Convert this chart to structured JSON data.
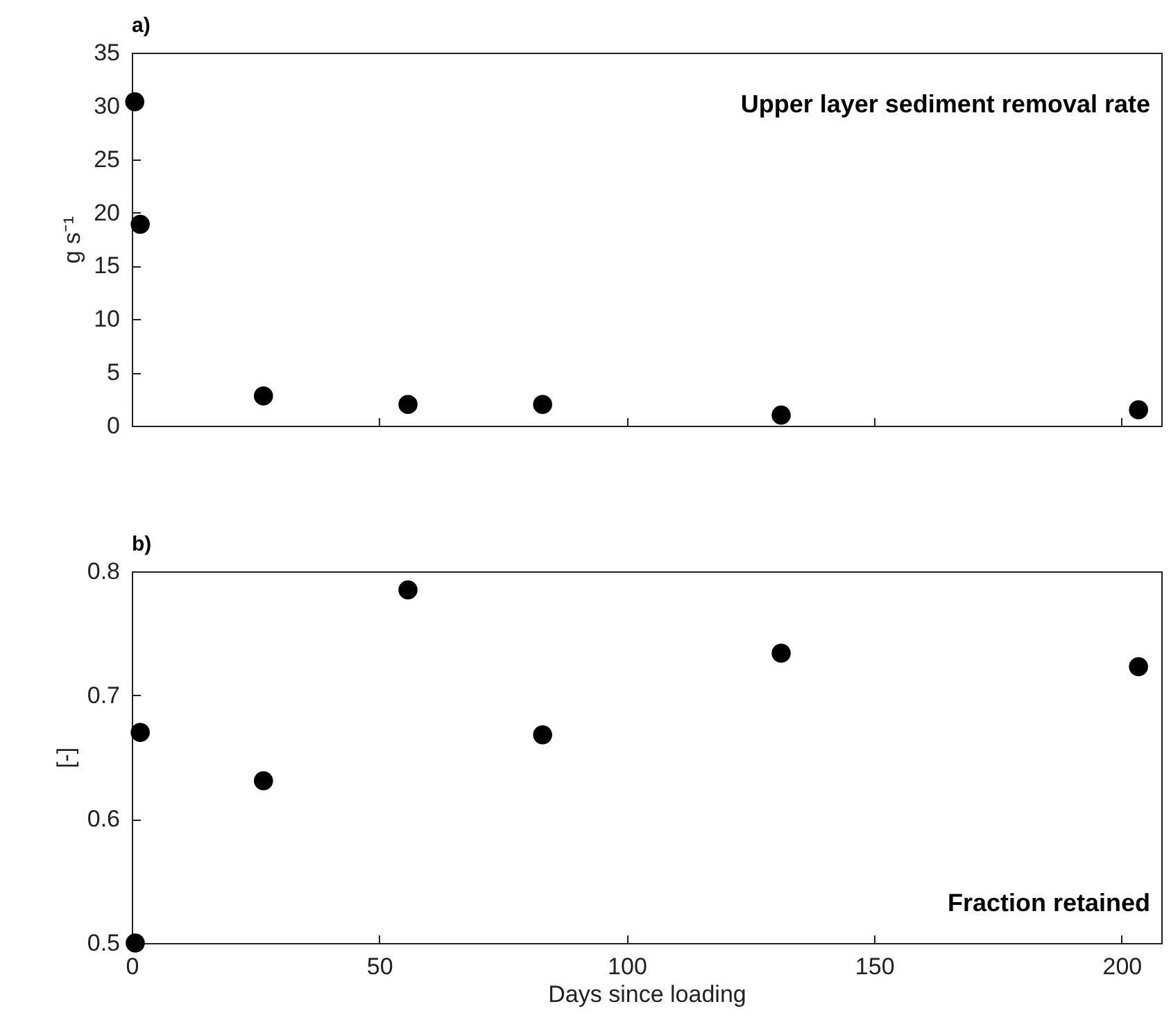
{
  "chart_data": [
    {
      "type": "scatter",
      "title": "a)",
      "ylabel": "g s⁻¹",
      "annotations": [
        "Upper layer sediment removal rate"
      ],
      "marker": "circle",
      "tick_labels": "y",
      "x": [
        0.6,
        1.7,
        26.6,
        55.8,
        83,
        131.2,
        203.4
      ],
      "series": [
        {
          "color": "#000000",
          "values": [
            30.4,
            18.9,
            2.8,
            2.0,
            2.0,
            1.0,
            1.5
          ]
        }
      ],
      "xlim": [
        0,
        208
      ],
      "xticks": [
        0,
        50,
        100,
        150,
        200
      ],
      "ylim": [
        0,
        35
      ],
      "yticks": [
        0,
        5,
        10,
        15,
        20,
        25,
        30,
        35
      ]
    },
    {
      "type": "scatter",
      "title": "b)",
      "xlabel": "Days since loading",
      "ylabel": "[-]",
      "annotations": [
        "Fraction retained"
      ],
      "marker": "circle",
      "x": [
        0.7,
        1.7,
        26.6,
        55.8,
        83,
        131.2,
        203.4
      ],
      "series": [
        {
          "color": "#000000",
          "values": [
            0.5,
            0.67,
            0.631,
            0.785,
            0.668,
            0.734,
            0.723
          ]
        }
      ],
      "xlim": [
        0,
        208
      ],
      "xticks": [
        0,
        50,
        100,
        150,
        200
      ],
      "ylim": [
        0.5,
        0.8
      ],
      "yticks": [
        0.5,
        0.6,
        0.7,
        0.8
      ]
    }
  ]
}
